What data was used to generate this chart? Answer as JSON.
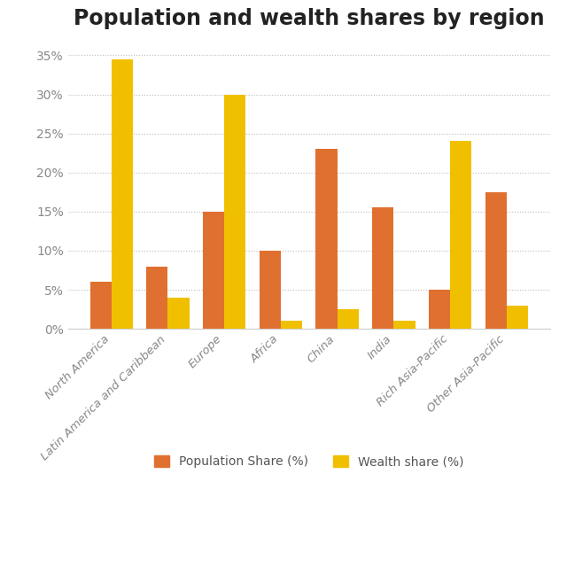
{
  "title": "Population and wealth shares by region",
  "categories": [
    "North America",
    "Latin America and Caribbean",
    "Europe",
    "Africa",
    "China",
    "India",
    "Rich Asia-Pacific",
    "Other Asia-Pacific"
  ],
  "population_share": [
    6,
    8,
    15,
    10,
    23,
    15.5,
    5,
    17.5
  ],
  "wealth_share": [
    34.5,
    4,
    30,
    1,
    2.5,
    1,
    24,
    3
  ],
  "population_color": "#E07030",
  "wealth_color": "#F0C000",
  "ylim": [
    0,
    37
  ],
  "yticks": [
    0,
    5,
    10,
    15,
    20,
    25,
    30,
    35
  ],
  "ytick_labels": [
    "0%",
    "5%",
    "10%",
    "15%",
    "20%",
    "25%",
    "30%",
    "35%"
  ],
  "legend_pop": "Population Share (%)",
  "legend_wealth": "Wealth share (%)",
  "title_fontsize": 17,
  "background_color": "#ffffff",
  "tick_color": "#888888",
  "bar_width": 0.38
}
